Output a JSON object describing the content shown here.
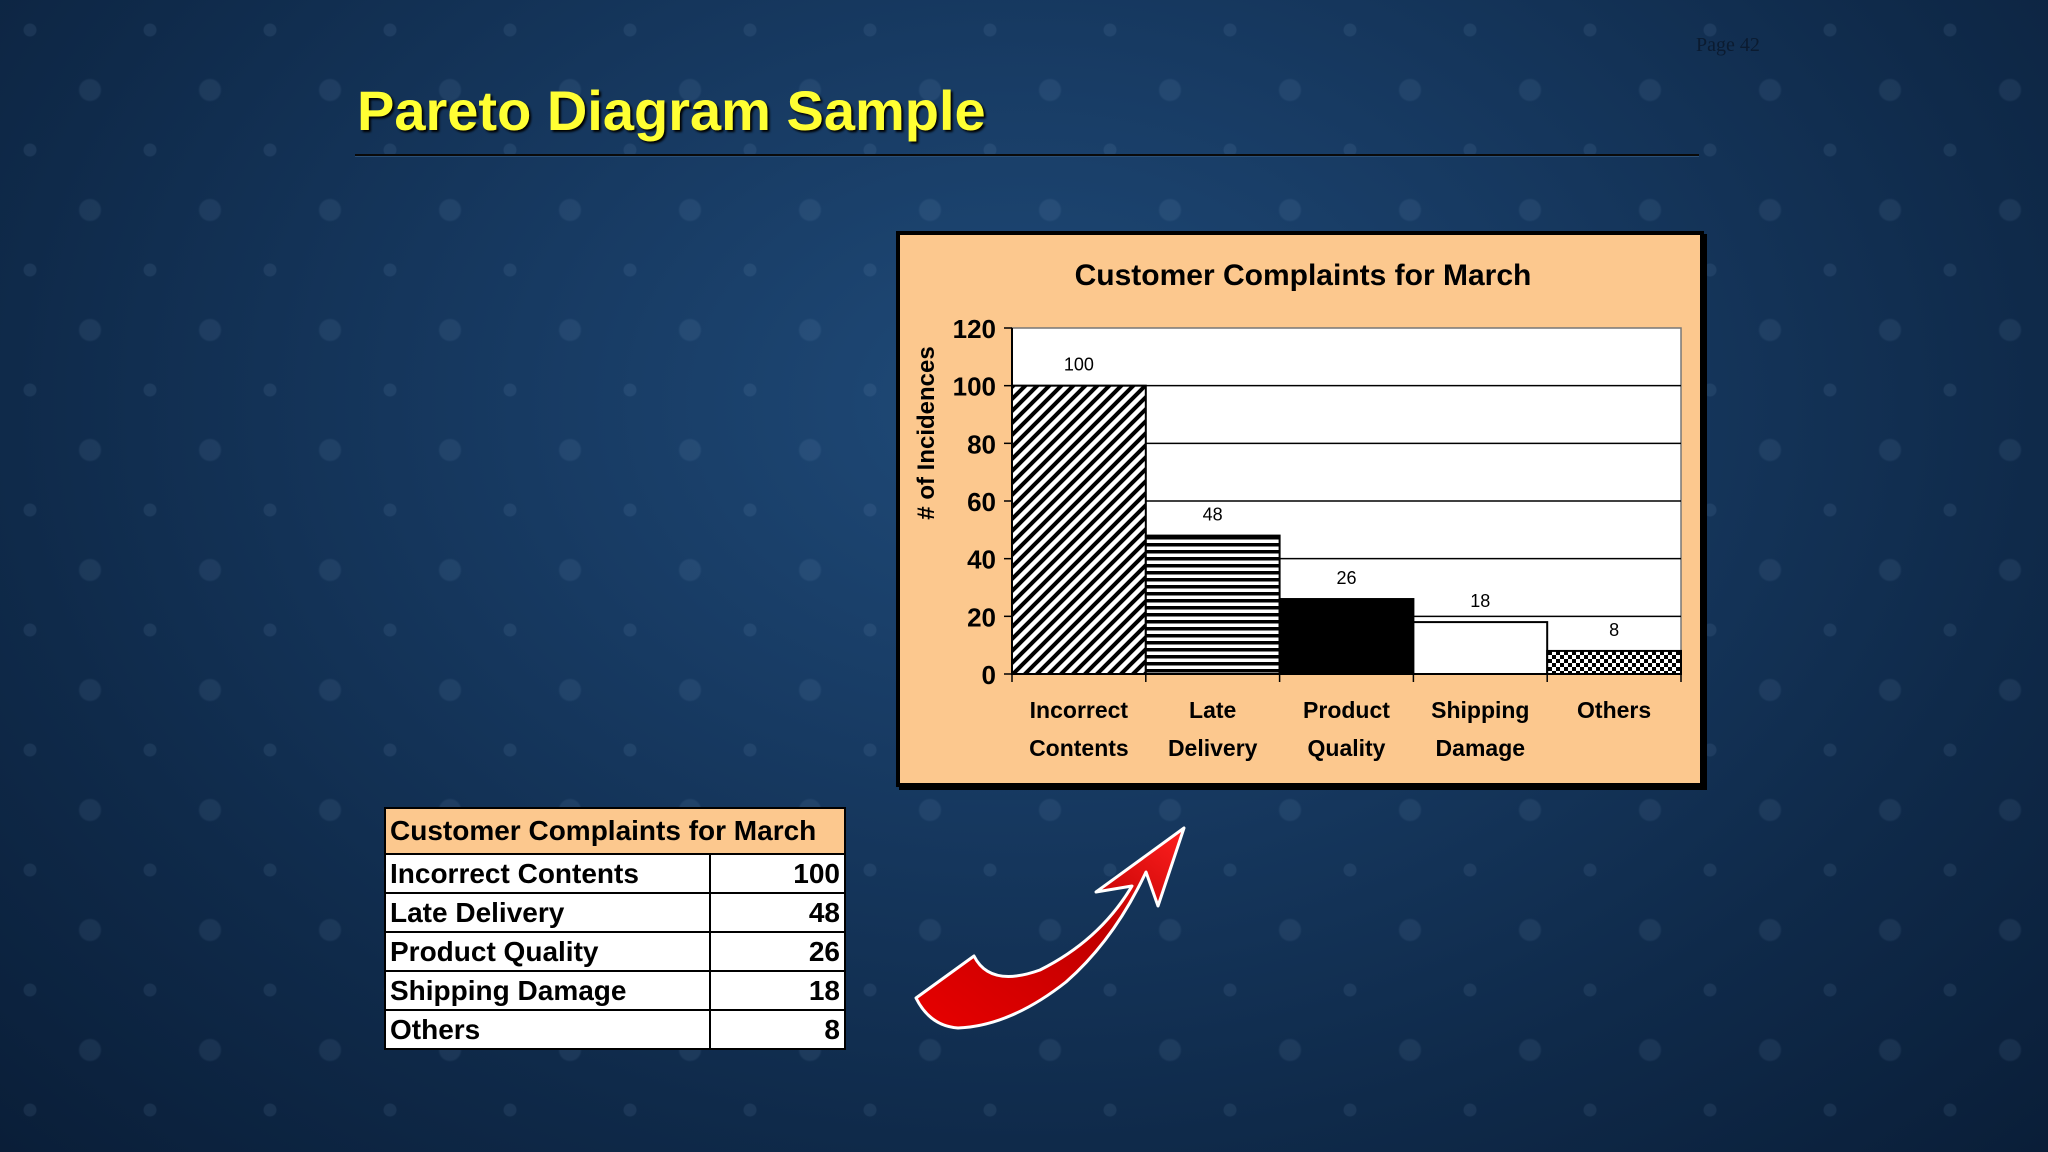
{
  "page": {
    "number": "Page 42",
    "title": "Pareto Diagram Sample"
  },
  "colors": {
    "title": "#ffff33",
    "chart_bg": "#fcc88e",
    "arrow": "#d40000"
  },
  "chart_data": {
    "type": "bar",
    "title": "Customer Complaints for March",
    "xlabel": "",
    "ylabel": "# of Incidences",
    "ylim": [
      0,
      120
    ],
    "yticks": [
      0,
      20,
      40,
      60,
      80,
      100,
      120
    ],
    "grid": true,
    "categories": [
      [
        "Incorrect",
        "Contents"
      ],
      [
        "Late",
        "Delivery"
      ],
      [
        "Product",
        "Quality"
      ],
      [
        "Shipping",
        "Damage"
      ],
      [
        "Others"
      ]
    ],
    "values": [
      100,
      48,
      26,
      18,
      8
    ],
    "bar_fills": [
      "diagonal-hatch",
      "horizontal-stripes",
      "solid-black",
      "white",
      "checkered"
    ]
  },
  "table": {
    "header": "Customer Complaints for March",
    "rows": [
      {
        "label": "Incorrect Contents",
        "value": "100"
      },
      {
        "label": "Late Delivery",
        "value": "48"
      },
      {
        "label": "Product Quality",
        "value": "26"
      },
      {
        "label": "Shipping Damage",
        "value": "18"
      },
      {
        "label": "Others",
        "value": "8"
      }
    ]
  },
  "decoration": {
    "arrow_icon": "curved-arrow-icon"
  }
}
